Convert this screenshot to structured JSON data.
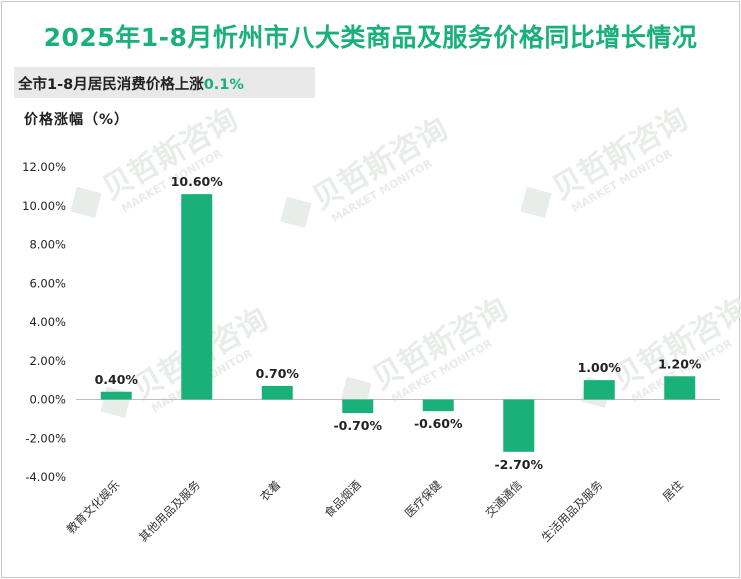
{
  "title": "2025年1-8月忻州市八大类商品及服务价格同比增长情况",
  "subtitle": {
    "text": "全市1-8月居民消费价格上涨",
    "value": "0.1%"
  },
  "unit_label": "价格涨幅（%）",
  "watermark": {
    "name": "贝哲斯咨询",
    "tagline": "MARKET MONITOR"
  },
  "colors": {
    "bar": "#1ab07a",
    "title": "#1ab07a",
    "axis": "#bfbfbf",
    "watermark": "#e8ede9"
  },
  "chart_data": {
    "type": "bar",
    "title": "2025年1-8月忻州市八大类商品及服务价格同比增长情况",
    "xlabel": "",
    "ylabel": "价格涨幅（%）",
    "ylim": [
      -4,
      12
    ],
    "yticks": [
      "12.00%",
      "10.00%",
      "8.00%",
      "6.00%",
      "4.00%",
      "2.00%",
      "0.00%",
      "-2.00%",
      "-4.00%"
    ],
    "ytick_values": [
      12,
      10,
      8,
      6,
      4,
      2,
      0,
      -2,
      -4
    ],
    "categories": [
      "教育文化娱乐",
      "其他用品及服务",
      "衣着",
      "食品烟酒",
      "医疗保健",
      "交通通信",
      "生活用品及服务",
      "居住"
    ],
    "values": [
      0.4,
      10.6,
      0.7,
      -0.7,
      -0.6,
      -2.7,
      1.0,
      1.2
    ],
    "value_labels": [
      "0.40%",
      "10.60%",
      "0.70%",
      "-0.70%",
      "-0.60%",
      "-2.70%",
      "1.00%",
      "1.20%"
    ],
    "grid": false,
    "legend": "none"
  }
}
